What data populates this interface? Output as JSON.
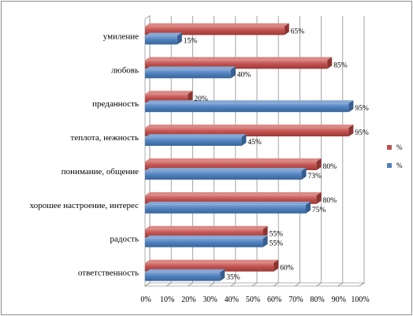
{
  "chart_data": {
    "type": "bar",
    "orientation": "horizontal",
    "style": "3d-clustered",
    "categories": [
      "умиление",
      "любовь",
      "преданность",
      "теплота, нежность",
      "понимание, общение",
      "хорошее настроение, интерес",
      "радость",
      "ответственность"
    ],
    "series": [
      {
        "name": "%",
        "color": "#c0504d",
        "values": [
          65,
          85,
          20,
          95,
          80,
          80,
          55,
          60
        ]
      },
      {
        "name": "%",
        "color": "#4f81bd",
        "values": [
          15,
          40,
          95,
          45,
          73,
          75,
          55,
          35
        ]
      }
    ],
    "x_ticks": [
      "0%",
      "10%",
      "20%",
      "30%",
      "40%",
      "50%",
      "60%",
      "70%",
      "80%",
      "90%",
      "100%"
    ],
    "xlim": [
      0,
      100
    ],
    "grid": true,
    "legend_position": "right"
  }
}
